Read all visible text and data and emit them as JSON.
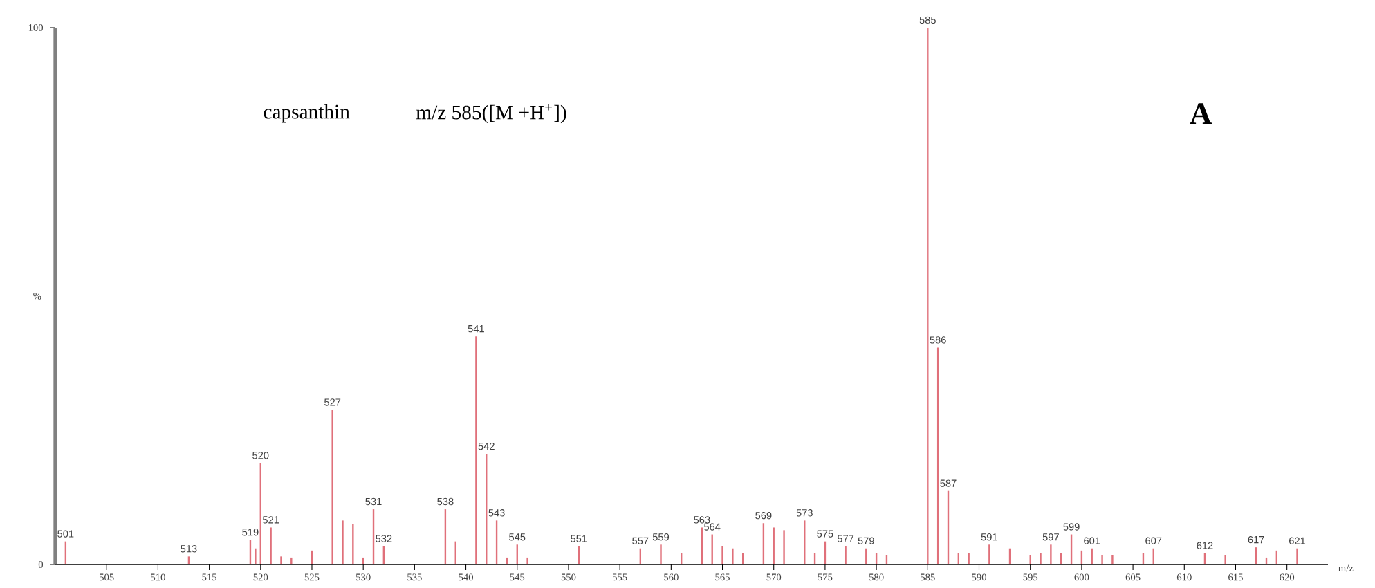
{
  "chart_data": {
    "type": "bar",
    "color": "#e0707a",
    "xlabel": "m/z",
    "ylabel": "%",
    "xlim": [
      500,
      624
    ],
    "ylim": [
      0,
      100
    ],
    "xticks": [
      505,
      510,
      515,
      520,
      525,
      530,
      535,
      540,
      545,
      550,
      555,
      560,
      565,
      570,
      575,
      580,
      585,
      590,
      595,
      600,
      605,
      610,
      615,
      620
    ],
    "yticks": [
      0,
      100
    ],
    "x": [
      501,
      513,
      519,
      519.5,
      520,
      521,
      522,
      523,
      525,
      527,
      528,
      529,
      530,
      531,
      532,
      538,
      539,
      541,
      542,
      543,
      544,
      545,
      546,
      551,
      557,
      559,
      561,
      563,
      564,
      565,
      566,
      567,
      569,
      570,
      571,
      573,
      574,
      575,
      577,
      579,
      580,
      581,
      585,
      586,
      587,
      588,
      589,
      591,
      593,
      595,
      596,
      597,
      598,
      599,
      600,
      601,
      602,
      603,
      606,
      607,
      612,
      614,
      617,
      618,
      619,
      621
    ],
    "values": [
      4.3,
      1.5,
      4.6,
      3.0,
      18.9,
      6.9,
      1.5,
      1.3,
      2.6,
      28.8,
      8.2,
      7.5,
      1.3,
      10.3,
      3.4,
      10.3,
      4.3,
      42.5,
      20.6,
      8.2,
      1.3,
      3.7,
      1.3,
      3.4,
      3.0,
      3.7,
      2.1,
      6.9,
      5.6,
      3.4,
      3.0,
      2.1,
      7.7,
      6.9,
      6.4,
      8.2,
      2.1,
      4.3,
      3.4,
      3.0,
      2.1,
      1.7,
      100,
      40.4,
      13.7,
      2.1,
      2.1,
      3.7,
      3.0,
      1.7,
      2.1,
      3.7,
      2.1,
      5.6,
      2.6,
      3.0,
      1.7,
      1.7,
      2.1,
      3.0,
      2.1,
      1.7,
      3.2,
      1.3,
      2.6,
      3.0
    ],
    "annotations": [
      "capsanthin",
      "m/z 585([M +H$^{+}$])",
      "A",
      {
        "text": "501",
        "x": 501,
        "y": 4.3
      },
      {
        "text": "513",
        "x": 513,
        "y": 1.5
      },
      {
        "text": "519",
        "x": 519,
        "y": 4.6
      },
      {
        "text": "520",
        "x": 520,
        "y": 18.9
      },
      {
        "text": "521",
        "x": 521,
        "y": 6.9
      },
      {
        "text": "527",
        "x": 527,
        "y": 28.8
      },
      {
        "text": "531",
        "x": 531,
        "y": 10.3
      },
      {
        "text": "532",
        "x": 532,
        "y": 3.4
      },
      {
        "text": "538",
        "x": 538,
        "y": 10.3
      },
      {
        "text": "541",
        "x": 541,
        "y": 42.5
      },
      {
        "text": "542",
        "x": 542,
        "y": 20.6
      },
      {
        "text": "543",
        "x": 543,
        "y": 8.2
      },
      {
        "text": "545",
        "x": 545,
        "y": 3.7
      },
      {
        "text": "551",
        "x": 551,
        "y": 3.4
      },
      {
        "text": "557",
        "x": 557,
        "y": 3.0
      },
      {
        "text": "559",
        "x": 559,
        "y": 3.7
      },
      {
        "text": "563",
        "x": 563,
        "y": 6.9
      },
      {
        "text": "564",
        "x": 564,
        "y": 5.6
      },
      {
        "text": "569",
        "x": 569,
        "y": 7.7
      },
      {
        "text": "573",
        "x": 573,
        "y": 8.2
      },
      {
        "text": "575",
        "x": 575,
        "y": 4.3
      },
      {
        "text": "577",
        "x": 577,
        "y": 3.4
      },
      {
        "text": "579",
        "x": 579,
        "y": 3.0
      },
      {
        "text": "585",
        "x": 585,
        "y": 100
      },
      {
        "text": "586",
        "x": 586,
        "y": 40.4
      },
      {
        "text": "587",
        "x": 587,
        "y": 13.7
      },
      {
        "text": "591",
        "x": 591,
        "y": 3.7
      },
      {
        "text": "597",
        "x": 597,
        "y": 3.7
      },
      {
        "text": "599",
        "x": 599,
        "y": 5.6
      },
      {
        "text": "601",
        "x": 601,
        "y": 3.0
      },
      {
        "text": "607",
        "x": 607,
        "y": 3.0
      },
      {
        "text": "612",
        "x": 612,
        "y": 2.1
      },
      {
        "text": "617",
        "x": 617,
        "y": 3.2
      },
      {
        "text": "621",
        "x": 621,
        "y": 3.0
      }
    ]
  }
}
